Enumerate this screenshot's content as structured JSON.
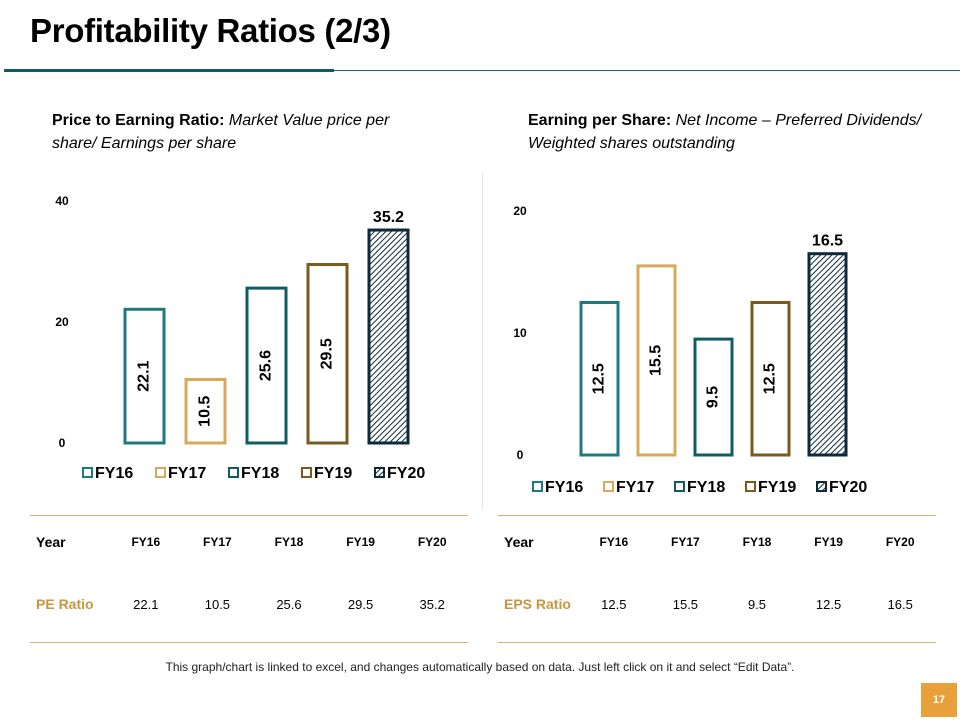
{
  "title": "Profitability Ratios (2/3)",
  "left": {
    "subtitle_bold": "Price to Earning Ratio:",
    "subtitle_italic": "Market Value price per share/ Earnings per share",
    "table": {
      "year_label": "Year",
      "row_label": "PE Ratio",
      "years": [
        "FY16",
        "FY17",
        "FY18",
        "FY19",
        "FY20"
      ],
      "values": [
        "22.1",
        "10.5",
        "25.6",
        "29.5",
        "35.2"
      ]
    }
  },
  "right": {
    "subtitle_bold": "Earning per Share:",
    "subtitle_italic": "Net Income – Preferred Dividends/ Weighted shares outstanding",
    "table": {
      "year_label": "Year",
      "row_label": "EPS Ratio",
      "years": [
        "FY16",
        "FY17",
        "FY18",
        "FY19",
        "FY20"
      ],
      "values": [
        "12.5",
        "15.5",
        "9.5",
        "12.5",
        "16.5"
      ]
    }
  },
  "footnote": "This graph/chart is linked to excel, and changes automatically based on data. Just left click on it and select “Edit Data”.",
  "page_number": "17",
  "colors": {
    "FY16": "#1f7a80",
    "FY17": "#d9a85a",
    "FY18": "#0f5c64",
    "FY19": "#7a5a1e",
    "FY20": "#0e2a3a",
    "accent_gold": "#c8963e",
    "page_badge": "#e8a13a"
  },
  "chart_data": [
    {
      "type": "bar",
      "title": "Price to Earning Ratio",
      "categories": [
        "FY16",
        "FY17",
        "FY18",
        "FY19",
        "FY20"
      ],
      "values": [
        22.1,
        10.5,
        25.6,
        29.5,
        35.2
      ],
      "ylim": [
        0,
        40
      ],
      "yticks": [
        0,
        20,
        40
      ],
      "xlabel": "",
      "ylabel": "",
      "legend": [
        "FY16",
        "FY17",
        "FY18",
        "FY19",
        "FY20"
      ],
      "legend_position": "bottom",
      "highlight": "FY20",
      "grid": false
    },
    {
      "type": "bar",
      "title": "Earning per Share",
      "categories": [
        "FY16",
        "FY17",
        "FY18",
        "FY19",
        "FY20"
      ],
      "values": [
        12.5,
        15.5,
        9.5,
        12.5,
        16.5
      ],
      "ylim": [
        0,
        20
      ],
      "yticks": [
        0,
        10,
        20
      ],
      "xlabel": "",
      "ylabel": "",
      "legend": [
        "FY16",
        "FY17",
        "FY18",
        "FY19",
        "FY20"
      ],
      "legend_position": "bottom",
      "highlight": "FY20",
      "grid": false
    }
  ]
}
